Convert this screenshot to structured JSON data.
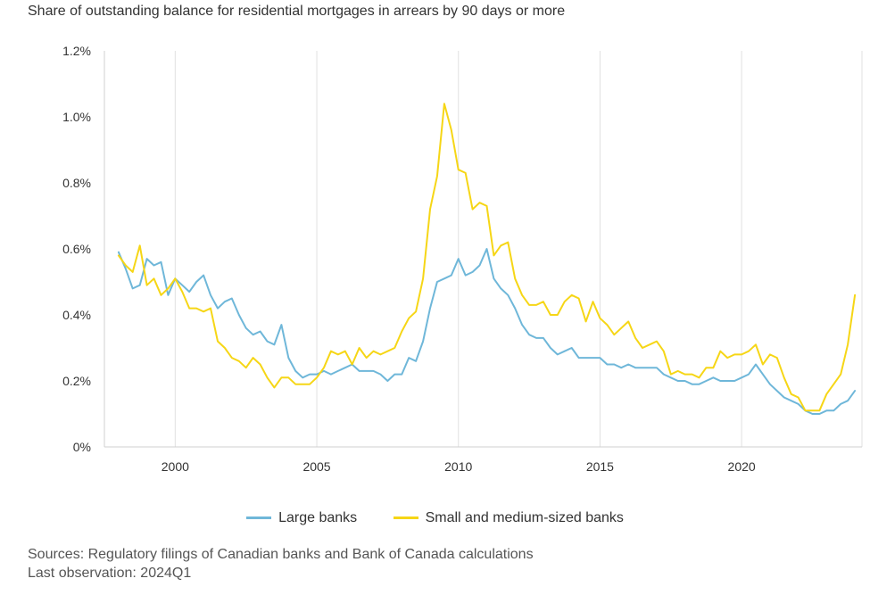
{
  "chart_data": {
    "type": "line",
    "title": "Share of outstanding balance for residential mortgages in arrears by 90 days or more",
    "xlabel": "",
    "ylabel": "",
    "xlim": [
      1997.5,
      2024.25
    ],
    "ylim": [
      0,
      1.2
    ],
    "y_ticks": [
      {
        "value": 0,
        "label": "0%"
      },
      {
        "value": 0.2,
        "label": "0.2%"
      },
      {
        "value": 0.4,
        "label": "0.4%"
      },
      {
        "value": 0.6,
        "label": "0.6%"
      },
      {
        "value": 0.8,
        "label": "0.8%"
      },
      {
        "value": 1.0,
        "label": "1.0%"
      },
      {
        "value": 1.2,
        "label": "1.2%"
      }
    ],
    "x_ticks": [
      {
        "value": 2000,
        "label": "2000"
      },
      {
        "value": 2005,
        "label": "2005"
      },
      {
        "value": 2010,
        "label": "2010"
      },
      {
        "value": 2015,
        "label": "2015"
      },
      {
        "value": 2020,
        "label": "2020"
      }
    ],
    "grid": "vertical",
    "legend_position": "bottom",
    "series": [
      {
        "name": "Large banks",
        "color": "#6fb7d9",
        "x": [
          1998.0,
          1998.25,
          1998.5,
          1998.75,
          1999.0,
          1999.25,
          1999.5,
          1999.75,
          2000.0,
          2000.25,
          2000.5,
          2000.75,
          2001.0,
          2001.25,
          2001.5,
          2001.75,
          2002.0,
          2002.25,
          2002.5,
          2002.75,
          2003.0,
          2003.25,
          2003.5,
          2003.75,
          2004.0,
          2004.25,
          2004.5,
          2004.75,
          2005.0,
          2005.25,
          2005.5,
          2005.75,
          2006.0,
          2006.25,
          2006.5,
          2006.75,
          2007.0,
          2007.25,
          2007.5,
          2007.75,
          2008.0,
          2008.25,
          2008.5,
          2008.75,
          2009.0,
          2009.25,
          2009.5,
          2009.75,
          2010.0,
          2010.25,
          2010.5,
          2010.75,
          2011.0,
          2011.25,
          2011.5,
          2011.75,
          2012.0,
          2012.25,
          2012.5,
          2012.75,
          2013.0,
          2013.25,
          2013.5,
          2013.75,
          2014.0,
          2014.25,
          2014.5,
          2014.75,
          2015.0,
          2015.25,
          2015.5,
          2015.75,
          2016.0,
          2016.25,
          2016.5,
          2016.75,
          2017.0,
          2017.25,
          2017.5,
          2017.75,
          2018.0,
          2018.25,
          2018.5,
          2018.75,
          2019.0,
          2019.25,
          2019.5,
          2019.75,
          2020.0,
          2020.25,
          2020.5,
          2020.75,
          2021.0,
          2021.25,
          2021.5,
          2021.75,
          2022.0,
          2022.25,
          2022.5,
          2022.75,
          2023.0,
          2023.25,
          2023.5,
          2023.75,
          2024.0
        ],
        "values": [
          0.59,
          0.54,
          0.48,
          0.49,
          0.57,
          0.55,
          0.56,
          0.46,
          0.51,
          0.49,
          0.47,
          0.5,
          0.52,
          0.46,
          0.42,
          0.44,
          0.45,
          0.4,
          0.36,
          0.34,
          0.35,
          0.32,
          0.31,
          0.37,
          0.27,
          0.23,
          0.21,
          0.22,
          0.22,
          0.23,
          0.22,
          0.23,
          0.24,
          0.25,
          0.23,
          0.23,
          0.23,
          0.22,
          0.2,
          0.22,
          0.22,
          0.27,
          0.26,
          0.32,
          0.42,
          0.5,
          0.51,
          0.52,
          0.57,
          0.52,
          0.53,
          0.55,
          0.6,
          0.51,
          0.48,
          0.46,
          0.42,
          0.37,
          0.34,
          0.33,
          0.33,
          0.3,
          0.28,
          0.29,
          0.3,
          0.27,
          0.27,
          0.27,
          0.27,
          0.25,
          0.25,
          0.24,
          0.25,
          0.24,
          0.24,
          0.24,
          0.24,
          0.22,
          0.21,
          0.2,
          0.2,
          0.19,
          0.19,
          0.2,
          0.21,
          0.2,
          0.2,
          0.2,
          0.21,
          0.22,
          0.25,
          0.22,
          0.19,
          0.17,
          0.15,
          0.14,
          0.13,
          0.11,
          0.1,
          0.1,
          0.11,
          0.11,
          0.13,
          0.14,
          0.17
        ]
      },
      {
        "name": "Small and medium-sized banks",
        "color": "#f6d616",
        "x": [
          1998.0,
          1998.25,
          1998.5,
          1998.75,
          1999.0,
          1999.25,
          1999.5,
          1999.75,
          2000.0,
          2000.25,
          2000.5,
          2000.75,
          2001.0,
          2001.25,
          2001.5,
          2001.75,
          2002.0,
          2002.25,
          2002.5,
          2002.75,
          2003.0,
          2003.25,
          2003.5,
          2003.75,
          2004.0,
          2004.25,
          2004.5,
          2004.75,
          2005.0,
          2005.25,
          2005.5,
          2005.75,
          2006.0,
          2006.25,
          2006.5,
          2006.75,
          2007.0,
          2007.25,
          2007.5,
          2007.75,
          2008.0,
          2008.25,
          2008.5,
          2008.75,
          2009.0,
          2009.25,
          2009.5,
          2009.75,
          2010.0,
          2010.25,
          2010.5,
          2010.75,
          2011.0,
          2011.25,
          2011.5,
          2011.75,
          2012.0,
          2012.25,
          2012.5,
          2012.75,
          2013.0,
          2013.25,
          2013.5,
          2013.75,
          2014.0,
          2014.25,
          2014.5,
          2014.75,
          2015.0,
          2015.25,
          2015.5,
          2015.75,
          2016.0,
          2016.25,
          2016.5,
          2016.75,
          2017.0,
          2017.25,
          2017.5,
          2017.75,
          2018.0,
          2018.25,
          2018.5,
          2018.75,
          2019.0,
          2019.25,
          2019.5,
          2019.75,
          2020.0,
          2020.25,
          2020.5,
          2020.75,
          2021.0,
          2021.25,
          2021.5,
          2021.75,
          2022.0,
          2022.25,
          2022.5,
          2022.75,
          2023.0,
          2023.25,
          2023.5,
          2023.75,
          2024.0
        ],
        "values": [
          0.58,
          0.55,
          0.53,
          0.61,
          0.49,
          0.51,
          0.46,
          0.48,
          0.51,
          0.47,
          0.42,
          0.42,
          0.41,
          0.42,
          0.32,
          0.3,
          0.27,
          0.26,
          0.24,
          0.27,
          0.25,
          0.21,
          0.18,
          0.21,
          0.21,
          0.19,
          0.19,
          0.19,
          0.21,
          0.24,
          0.29,
          0.28,
          0.29,
          0.25,
          0.3,
          0.27,
          0.29,
          0.28,
          0.29,
          0.3,
          0.35,
          0.39,
          0.41,
          0.51,
          0.72,
          0.82,
          1.04,
          0.96,
          0.84,
          0.83,
          0.72,
          0.74,
          0.73,
          0.58,
          0.61,
          0.62,
          0.51,
          0.46,
          0.43,
          0.43,
          0.44,
          0.4,
          0.4,
          0.44,
          0.46,
          0.45,
          0.38,
          0.44,
          0.39,
          0.37,
          0.34,
          0.36,
          0.38,
          0.33,
          0.3,
          0.31,
          0.32,
          0.29,
          0.22,
          0.23,
          0.22,
          0.22,
          0.21,
          0.24,
          0.24,
          0.29,
          0.27,
          0.28,
          0.28,
          0.29,
          0.31,
          0.25,
          0.28,
          0.27,
          0.21,
          0.16,
          0.15,
          0.11,
          0.11,
          0.11,
          0.16,
          0.19,
          0.22,
          0.31,
          0.46
        ]
      }
    ]
  },
  "footer": {
    "sources": "Sources: Regulatory filings of Canadian banks and Bank of Canada calculations",
    "last_observation": "Last observation: 2024Q1"
  }
}
